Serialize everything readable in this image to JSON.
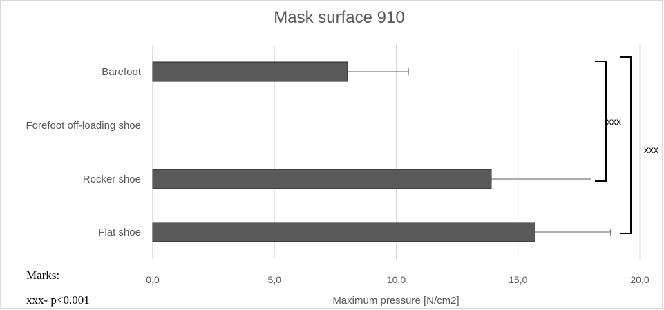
{
  "chart_data": {
    "type": "bar",
    "orientation": "horizontal",
    "title": "Mask surface 910",
    "xlabel": "Maximum  pressure  [N/cm2]",
    "ylabel": "",
    "xlim": [
      0,
      20
    ],
    "xticks": [
      0,
      5,
      10,
      15,
      20
    ],
    "xtick_labels": [
      "0,0",
      "5,0",
      "10,0",
      "15,0",
      "20,0"
    ],
    "grid": "vertical",
    "categories": [
      "Barefoot",
      "Forefoot off-loading shoe",
      "Rocker shoe",
      "Flat shoe"
    ],
    "values": [
      8.0,
      null,
      13.9,
      15.7
    ],
    "errors": [
      2.5,
      null,
      4.1,
      3.1
    ],
    "bar_color": "#595959",
    "annotations": [
      {
        "text": "xxx",
        "from": "Barefoot",
        "to": "Rocker shoe"
      },
      {
        "text": "xxx",
        "from": "Barefoot",
        "to": "Flat shoe"
      }
    ]
  },
  "notes": {
    "marks_label": "Marks:",
    "marks_legend": "xxx- p<0.001"
  }
}
